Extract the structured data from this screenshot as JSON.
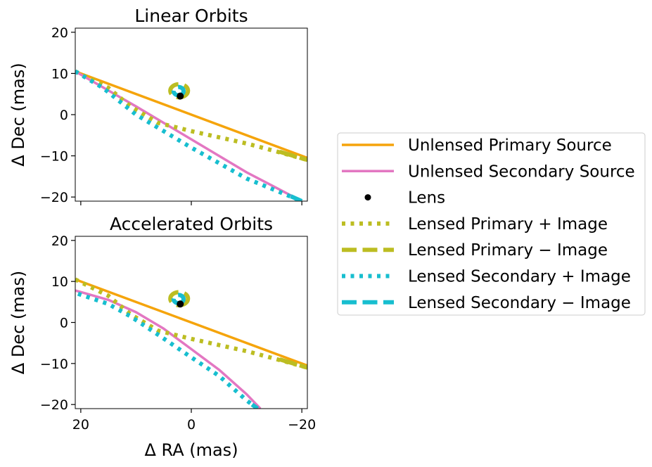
{
  "chart_data": [
    {
      "type": "line",
      "title": "Linear Orbits",
      "xlabel": "",
      "ylabel": "Δ Dec (mas)",
      "xlim": [
        21,
        -21
      ],
      "ylim": [
        -21,
        21
      ],
      "x_inverted": true,
      "xticks": [
        20,
        0,
        -20
      ],
      "xticklabels_shown": false,
      "yticks": [
        20,
        10,
        0,
        -10,
        -20
      ],
      "lens": {
        "x": 2,
        "y": 4.5
      },
      "series": [
        {
          "name": "Unlensed Primary Source",
          "color": "#f5a40b",
          "style": "solid",
          "points": [
            [
              21,
              10.5
            ],
            [
              0,
              0
            ],
            [
              -21,
              -10.5
            ]
          ]
        },
        {
          "name": "Unlensed Secondary Source",
          "color": "#e377c2",
          "style": "solid",
          "points": [
            [
              21,
              10.5
            ],
            [
              10,
              2
            ],
            [
              0,
              -6
            ],
            [
              -10,
              -14
            ],
            [
              -20,
              -21
            ]
          ]
        },
        {
          "name": "Lensed Primary + Image",
          "color": "#bcbd22",
          "style": "dotted",
          "points": [
            [
              21,
              10.5
            ],
            [
              15,
              6.5
            ],
            [
              11,
              2
            ],
            [
              6,
              -2
            ],
            [
              0,
              -4
            ],
            [
              -5,
              -5.5
            ],
            [
              -10,
              -7
            ],
            [
              -15,
              -8.8
            ],
            [
              -21,
              -11
            ]
          ]
        },
        {
          "name": "Lensed Primary − Image",
          "color": "#bcbd22",
          "style": "dashed",
          "points": [
            [
              -16,
              -9
            ],
            [
              -21,
              -11
            ]
          ],
          "ring": {
            "cx": 2.2,
            "cy": 5.8,
            "rx": 1.6,
            "ry": 1.6
          }
        },
        {
          "name": "Lensed Secondary + Image",
          "color": "#17becf",
          "style": "dotted",
          "points": [
            [
              21,
              10.5
            ],
            [
              16,
              6.5
            ],
            [
              10,
              0
            ],
            [
              0,
              -8
            ],
            [
              -10,
              -15.5
            ],
            [
              -20,
              -21
            ]
          ]
        },
        {
          "name": "Lensed Secondary − Image",
          "color": "#17becf",
          "style": "dashed",
          "points": [
            [
              -18,
              -19.8
            ],
            [
              -20,
              -21
            ]
          ],
          "ring": {
            "cx": 2.3,
            "cy": 5.7,
            "rx": 0.9,
            "ry": 1.0
          }
        }
      ]
    },
    {
      "type": "line",
      "title": "Accelerated Orbits",
      "xlabel": "Δ RA (mas)",
      "ylabel": "Δ Dec (mas)",
      "xlim": [
        21,
        -21
      ],
      "ylim": [
        -21,
        21
      ],
      "x_inverted": true,
      "xticks": [
        20,
        0,
        -20
      ],
      "xticklabels": [
        "20",
        "0",
        "−20"
      ],
      "yticks": [
        20,
        10,
        0,
        -10,
        -20
      ],
      "lens": {
        "x": 2,
        "y": 4.5
      },
      "series": [
        {
          "name": "Unlensed Primary Source",
          "color": "#f5a40b",
          "style": "solid",
          "points": [
            [
              21,
              10.5
            ],
            [
              0,
              0
            ],
            [
              -21,
              -10.5
            ]
          ]
        },
        {
          "name": "Unlensed Secondary Source",
          "color": "#e377c2",
          "style": "solid",
          "points": [
            [
              21,
              7.8
            ],
            [
              15,
              5.5
            ],
            [
              10,
              2.5
            ],
            [
              5,
              -1.5
            ],
            [
              0,
              -6.5
            ],
            [
              -5,
              -11.5
            ],
            [
              -10,
              -17.5
            ],
            [
              -12.5,
              -21
            ]
          ]
        },
        {
          "name": "Lensed Primary + Image",
          "color": "#bcbd22",
          "style": "dotted",
          "points": [
            [
              21,
              10.5
            ],
            [
              15,
              6.5
            ],
            [
              11,
              2
            ],
            [
              6,
              -2
            ],
            [
              0,
              -4
            ],
            [
              -5,
              -5.5
            ],
            [
              -10,
              -7
            ],
            [
              -15,
              -8.8
            ],
            [
              -21,
              -11
            ]
          ]
        },
        {
          "name": "Lensed Primary − Image",
          "color": "#bcbd22",
          "style": "dashed",
          "points": [
            [
              -16,
              -9
            ],
            [
              -21,
              -11
            ]
          ],
          "ring": {
            "cx": 2.2,
            "cy": 5.8,
            "rx": 1.6,
            "ry": 1.6
          }
        },
        {
          "name": "Lensed Secondary + Image",
          "color": "#17becf",
          "style": "dotted",
          "points": [
            [
              20.5,
              7
            ],
            [
              15,
              4.5
            ],
            [
              11,
              1.5
            ],
            [
              6,
              -3
            ],
            [
              0,
              -8.5
            ],
            [
              -5,
              -13
            ],
            [
              -10,
              -19
            ],
            [
              -12,
              -21
            ]
          ]
        },
        {
          "name": "Lensed Secondary − Image",
          "color": "#17becf",
          "style": "dashed",
          "points": [
            [
              -11,
              -20
            ],
            [
              -12,
              -21
            ]
          ],
          "ring": {
            "cx": 2.3,
            "cy": 5.7,
            "rx": 0.9,
            "ry": 1.0
          }
        }
      ]
    }
  ],
  "legend": {
    "placement": "right",
    "entries": [
      {
        "label": "Unlensed Primary Source",
        "color": "#f5a40b",
        "marker": "solid"
      },
      {
        "label": "Unlensed Secondary Source",
        "color": "#e377c2",
        "marker": "solid"
      },
      {
        "label": "Lens",
        "color": "#000000",
        "marker": "dot"
      },
      {
        "label": "Lensed Primary + Image",
        "color": "#bcbd22",
        "marker": "dotted"
      },
      {
        "label": "Lensed Primary − Image",
        "color": "#bcbd22",
        "marker": "dashed"
      },
      {
        "label": "Lensed Secondary + Image",
        "color": "#17becf",
        "marker": "dotted"
      },
      {
        "label": "Lensed Secondary − Image",
        "color": "#17becf",
        "marker": "dashed"
      }
    ]
  }
}
